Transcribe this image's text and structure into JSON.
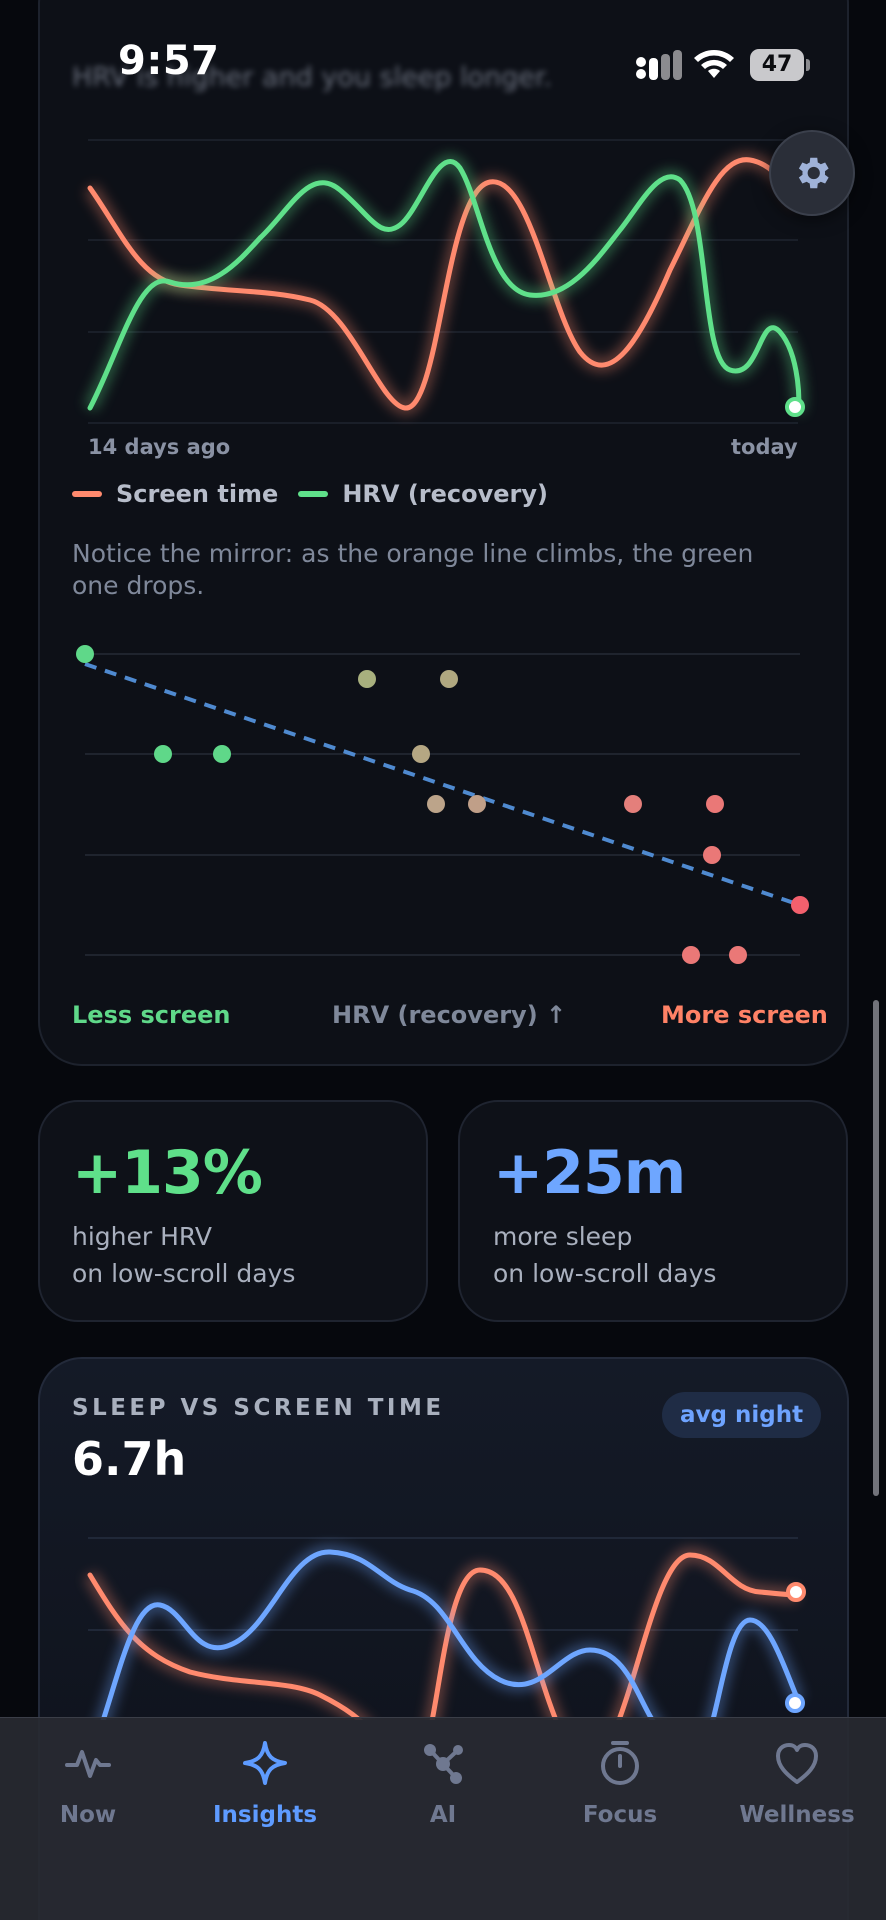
{
  "status_bar": {
    "time": "9:57",
    "battery": "47"
  },
  "top_text_partial": "HRV is higher and you sleep longer.",
  "trend_chart": {
    "x_start_label": "14 days ago",
    "x_end_label": "today",
    "legend": [
      {
        "name": "Screen time",
        "color": "#ff8a6e"
      },
      {
        "name": "HRV (recovery)",
        "color": "#5fe08a"
      }
    ],
    "note": "Notice the mirror: as the orange line climbs, the green one drops."
  },
  "scatter": {
    "left_label": "Less screen",
    "center_label": "HRV (recovery) ↑",
    "right_label": "More screen",
    "left_color": "#5fd889",
    "right_color": "#ff8266"
  },
  "stats": [
    {
      "value": "+13%",
      "line1": "higher HRV",
      "line2": "on low-scroll days",
      "color": "#5fe08a"
    },
    {
      "value": "+25m",
      "line1": "more sleep",
      "line2": "on low-scroll days",
      "color": "#6ea6ff"
    }
  ],
  "sleep_card": {
    "title": "SLEEP VS SCREEN TIME",
    "value": "6.7h",
    "pill": "avg night"
  },
  "nav": [
    {
      "label": "Now",
      "icon": "pulse-icon",
      "active": false
    },
    {
      "label": "Insights",
      "icon": "sparkle-icon",
      "active": true
    },
    {
      "label": "AI",
      "icon": "network-icon",
      "active": false
    },
    {
      "label": "Focus",
      "icon": "timer-icon",
      "active": false
    },
    {
      "label": "Wellness",
      "icon": "heart-icon",
      "active": false
    }
  ]
}
